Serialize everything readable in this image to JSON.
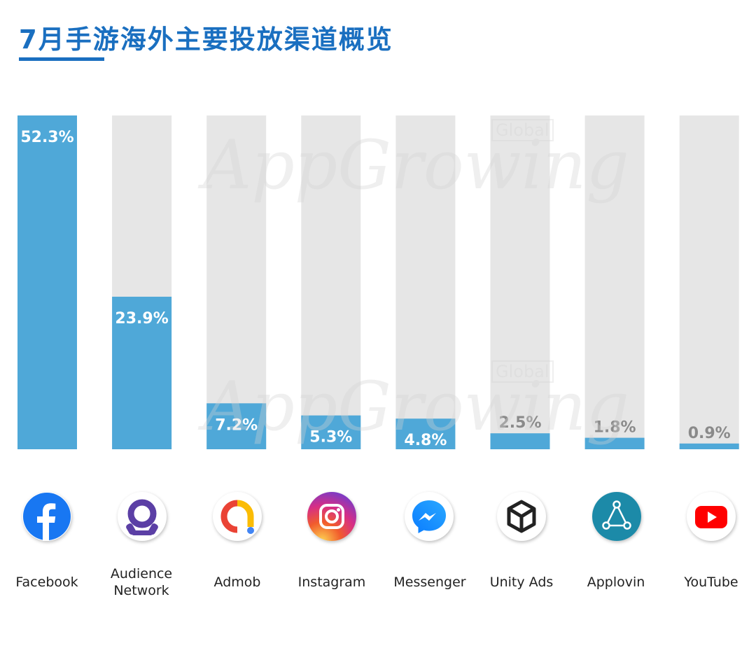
{
  "title": "7月手游海外主要投放渠道概览",
  "watermark": {
    "main": "AppGrowing",
    "sub": "Global"
  },
  "colors": {
    "bar": "#4fa8d8",
    "track": "#e6e6e6",
    "title": "#1a6fc0",
    "label_inside": "#ffffff",
    "label_outside": "#8a8a8a"
  },
  "chart_data": {
    "type": "bar",
    "categories": [
      "Facebook",
      "Audience\nNetwork",
      "Admob",
      "Instagram",
      "Messenger",
      "Unity Ads",
      "Applovin",
      "YouTube"
    ],
    "values": [
      52.3,
      23.9,
      7.2,
      5.3,
      4.8,
      2.5,
      1.8,
      0.9
    ],
    "value_labels": [
      "52.3%",
      "23.9%",
      "7.2%",
      "5.3%",
      "4.8%",
      "2.5%",
      "1.8%",
      "0.9%"
    ],
    "title": "7月手游海外主要投放渠道概览",
    "xlabel": "",
    "ylabel": "",
    "ylim": [
      0,
      52.3
    ],
    "icons": [
      "facebook-icon",
      "audience-network-icon",
      "admob-icon",
      "instagram-icon",
      "messenger-icon",
      "unity-icon",
      "applovin-icon",
      "youtube-icon"
    ]
  }
}
